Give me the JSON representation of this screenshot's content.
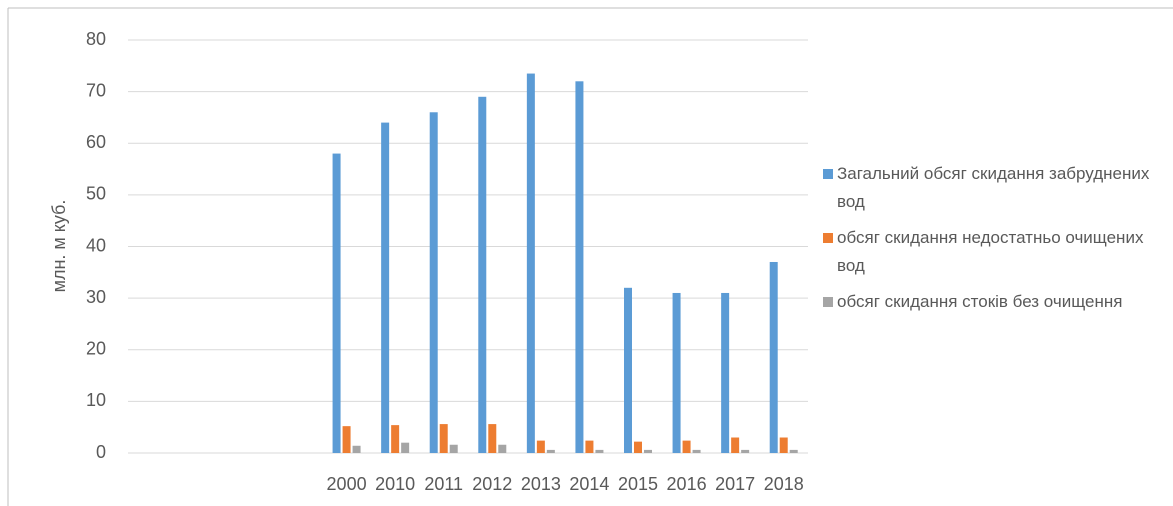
{
  "chart_data": {
    "type": "bar",
    "y_label": "млн. м куб.",
    "categories": [
      null,
      null,
      null,
      null,
      "2000",
      "2010",
      "2011",
      "2012",
      "2013",
      "2014",
      "2015",
      "2016",
      "2017",
      "2018"
    ],
    "series": [
      {
        "name": "Загальний обсяг скидання забруднених вод",
        "color": "#5b9bd5",
        "values": [
          null,
          null,
          null,
          null,
          58,
          64,
          66,
          69,
          73.5,
          72,
          32,
          31,
          31,
          37
        ]
      },
      {
        "name": "обсяг скидання недостатньо очищених вод",
        "color": "#ed7d31",
        "values": [
          null,
          null,
          null,
          null,
          5.2,
          5.4,
          5.6,
          5.6,
          2.4,
          2.4,
          2.2,
          2.4,
          3,
          3
        ]
      },
      {
        "name": "обсяг скидання стоків без очищення",
        "color": "#a5a5a5",
        "values": [
          null,
          null,
          null,
          null,
          1.4,
          2,
          1.6,
          1.6,
          0.6,
          0.6,
          0.6,
          0.6,
          0.6,
          0.6
        ]
      }
    ],
    "ylim": [
      0,
      80
    ],
    "yticks": [
      0,
      10,
      20,
      30,
      40,
      50,
      60,
      70,
      80
    ],
    "grid": true,
    "legend": "right"
  }
}
